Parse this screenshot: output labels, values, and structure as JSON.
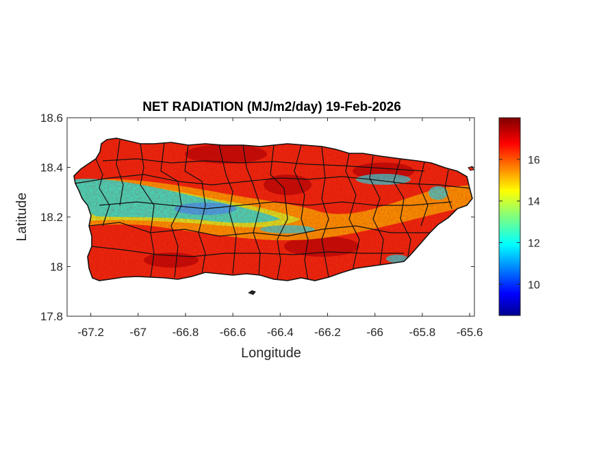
{
  "chart_data": {
    "type": "heatmap",
    "title": "NET RADIATION (MJ/m2/day) 19-Feb-2026",
    "xlabel": "Longitude",
    "ylabel": "Latitude",
    "xlim": [
      -67.3,
      -65.58
    ],
    "ylim": [
      17.8,
      18.6
    ],
    "x_ticks": [
      "-67.2",
      "-67",
      "-66.8",
      "-66.6",
      "-66.4",
      "-66.2",
      "-66",
      "-65.8",
      "-65.6"
    ],
    "x_tick_values": [
      -67.2,
      -67.0,
      -66.8,
      -66.6,
      -66.4,
      -66.2,
      -66.0,
      -65.8,
      -65.6
    ],
    "y_ticks": [
      "18.6",
      "18.4",
      "18.2",
      "18",
      "17.8"
    ],
    "y_tick_values": [
      18.6,
      18.4,
      18.2,
      18.0,
      17.8
    ],
    "colorbar": {
      "colormap": "jet",
      "range": [
        8.5,
        18.0
      ],
      "ticks": [
        "16",
        "14",
        "12",
        "10"
      ],
      "tick_values": [
        16,
        14,
        12,
        10
      ]
    },
    "region": "Puerto Rico (municipality boundaries)",
    "field_summary": [
      {
        "area": "north coast",
        "value_range": [
          16,
          18
        ]
      },
      {
        "area": "central-west interior band",
        "value_range": [
          11,
          14
        ]
      },
      {
        "area": "south coast",
        "value_range": [
          16,
          18
        ]
      },
      {
        "area": "east",
        "value_range": [
          15,
          18
        ]
      }
    ]
  }
}
